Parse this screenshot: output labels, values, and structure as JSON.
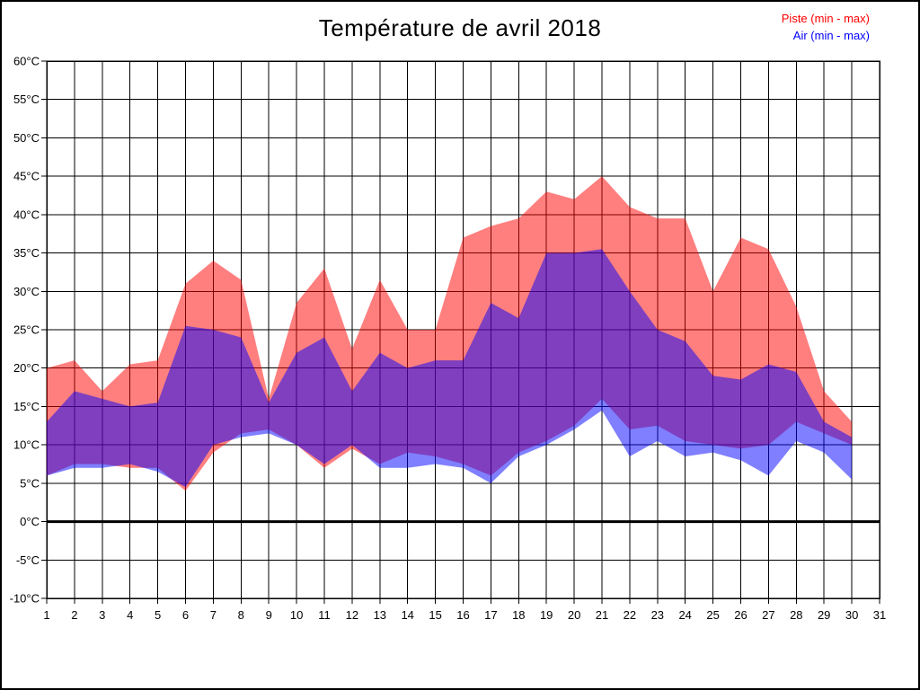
{
  "figure": {
    "title": "Température de avril 2018"
  },
  "chart_data": {
    "type": "area",
    "title": "Température de avril 2018",
    "subtitle": "",
    "xlabel": "",
    "ylabel": "",
    "grid": true,
    "legend_position": "top-right",
    "background": "#ffffff",
    "ylim": [
      -10,
      60
    ],
    "zero_line_bold": true,
    "yticks": [
      [
        60,
        "60°C"
      ],
      [
        55,
        "55°C"
      ],
      [
        50,
        "50°C"
      ],
      [
        45,
        "45°C"
      ],
      [
        40,
        "40°C"
      ],
      [
        35,
        "35°C"
      ],
      [
        30,
        "30°C"
      ],
      [
        25,
        "25°C"
      ],
      [
        20,
        "20°C"
      ],
      [
        15,
        "15°C"
      ],
      [
        10,
        "10°C"
      ],
      [
        5,
        "5°C"
      ],
      [
        0,
        "0°C"
      ],
      [
        -5,
        "-5°C"
      ],
      [
        -10,
        "-10°C"
      ]
    ],
    "xticks": [
      1,
      2,
      3,
      4,
      5,
      6,
      7,
      8,
      9,
      10,
      11,
      12,
      13,
      14,
      15,
      16,
      17,
      18,
      19,
      20,
      21,
      22,
      23,
      24,
      25,
      26,
      27,
      28,
      29,
      30,
      31
    ],
    "x": [
      1,
      2,
      3,
      4,
      5,
      6,
      7,
      8,
      9,
      10,
      11,
      12,
      13,
      14,
      15,
      16,
      17,
      18,
      19,
      20,
      21,
      22,
      23,
      24,
      25,
      26,
      27,
      28,
      29,
      30
    ],
    "series": [
      {
        "key": "piste",
        "name": "Piste (min - max)",
        "color": "#ff0000",
        "opacity": 0.5,
        "max": [
          20,
          21,
          17,
          20.5,
          21,
          31,
          34,
          31.5,
          16,
          28.5,
          33,
          22.5,
          31.5,
          25,
          25,
          37,
          38.5,
          39.5,
          43,
          42,
          45,
          41,
          39.5,
          39.5,
          30,
          37,
          35.5,
          28,
          17,
          13
        ],
        "min": [
          6,
          7.5,
          7.5,
          7,
          7,
          4,
          9,
          11.5,
          12,
          10,
          7,
          9.5,
          7.5,
          9,
          8.5,
          7.5,
          6,
          9,
          10.5,
          12.5,
          16,
          12,
          12.5,
          10.5,
          10,
          9.5,
          10,
          13,
          11.5,
          10
        ]
      },
      {
        "key": "air",
        "name": "Air (min - max)",
        "color": "#0000ff",
        "opacity": 0.5,
        "max": [
          13,
          17,
          16,
          15,
          15.5,
          25.5,
          25,
          24,
          15.5,
          22,
          24,
          17,
          22,
          20,
          21,
          21,
          28.5,
          26.5,
          35,
          35,
          35.5,
          30,
          25,
          23.5,
          19,
          18.5,
          20.5,
          19.5,
          13,
          11
        ],
        "min": [
          6,
          7,
          7,
          7.5,
          6.5,
          4.5,
          10,
          11,
          11.5,
          10,
          7.5,
          10,
          7,
          7,
          7.5,
          7,
          5,
          8.5,
          10,
          12,
          14.5,
          8.5,
          10.5,
          8.5,
          9,
          8,
          6,
          10.5,
          9,
          5.5
        ]
      }
    ]
  }
}
